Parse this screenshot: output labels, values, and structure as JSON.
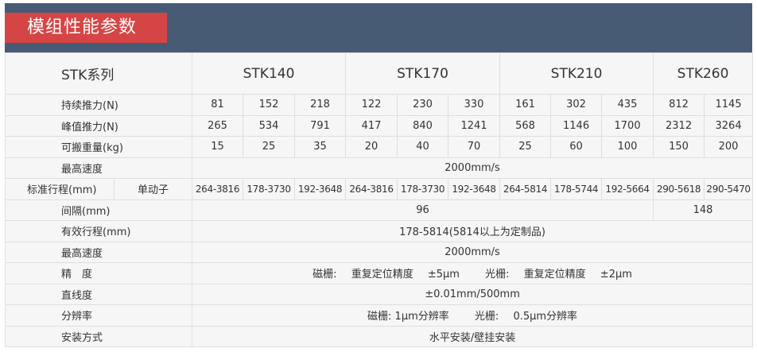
{
  "title": "模组性能参数",
  "colors": {
    "banner": "#485b75",
    "title_tab": "#d64545",
    "table_bg": "#f6f6f6"
  },
  "header": {
    "series_label": "STK系列",
    "models": [
      "STK140",
      "STK170",
      "STK210",
      "STK260"
    ]
  },
  "rows": {
    "continuous_force": {
      "label": "持续推力(N)",
      "values": [
        "81",
        "152",
        "218",
        "122",
        "230",
        "330",
        "161",
        "302",
        "435",
        "812",
        "1145"
      ]
    },
    "peak_force": {
      "label": "峰值推力(N)",
      "values": [
        "265",
        "534",
        "791",
        "417",
        "840",
        "1241",
        "568",
        "1146",
        "1700",
        "2312",
        "3264"
      ]
    },
    "payload": {
      "label": "可搬重量(kg)",
      "values": [
        "15",
        "25",
        "35",
        "20",
        "40",
        "70",
        "25",
        "60",
        "100",
        "150",
        "200"
      ]
    },
    "max_speed_1": {
      "label": "最高速度",
      "value": "2000mm/s"
    },
    "standard_stroke": {
      "label": "标准行程(mm)",
      "sublabel": "单动子",
      "values": [
        "264-3816",
        "178-3730",
        "192-3648",
        "264-3816",
        "178-3730",
        "192-3648",
        "264-5814",
        "178-5744",
        "192-5664",
        "290-5618",
        "290-5470"
      ]
    },
    "spacing": {
      "label": "间隔(mm)",
      "value_a": "96",
      "value_b": "148"
    },
    "effective_stroke": {
      "label": "有效行程(mm)",
      "value": "178-5814(5814以上为定制品)"
    },
    "max_speed_2": {
      "label": "最高速度",
      "value": "2000mm/s"
    },
    "precision": {
      "label": "精　度",
      "mag_label": "磁栅:",
      "mag_text": "重复定位精度",
      "mag_value": "±5μm",
      "opt_label": "光栅:",
      "opt_text": "重复定位精度",
      "opt_value": "±2μm"
    },
    "straightness": {
      "label": "直线度",
      "value": "±0.01mm/500mm"
    },
    "resolution": {
      "label": "分辨率",
      "mag_label": "磁栅:",
      "mag_value": "1μm分辨率",
      "opt_label": "光栅:",
      "opt_value": "0.5μm分辨率"
    },
    "mounting": {
      "label": "安装方式",
      "value": "水平安装/壁挂安装"
    }
  }
}
